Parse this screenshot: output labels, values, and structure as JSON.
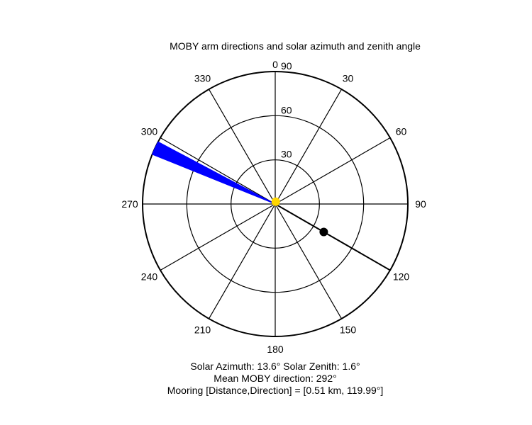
{
  "chart_data": {
    "type": "polar",
    "title": "MOBY arm directions and solar azimuth and zenith angle",
    "angle_ticks": [
      0,
      30,
      60,
      90,
      120,
      150,
      180,
      210,
      240,
      270,
      300,
      330
    ],
    "angle_tick_labels": [
      "0",
      "30",
      "60",
      "90",
      "120",
      "150",
      "180",
      "210",
      "240",
      "270",
      "300",
      "330"
    ],
    "radial_ticks": [
      30,
      60,
      90
    ],
    "radial_tick_labels": [
      "30",
      "60",
      "90"
    ],
    "radial_max": 90,
    "arm_wedge": {
      "from_azimuth": 292,
      "to_azimuth": 298,
      "color": "#0000ff"
    },
    "sun_marker": {
      "azimuth": 13.6,
      "zenith": 1.6,
      "color": "#ffd700"
    },
    "mooring_marker": {
      "azimuth": 119.99,
      "distance_km": 0.51,
      "color": "#000000"
    },
    "mooring_line": {
      "azimuth": 119.99,
      "color": "#000000"
    }
  },
  "footer": {
    "line1": "Solar Azimuth: 13.6°   Solar Zenith: 1.6°",
    "line2": "Mean MOBY direction: 292°",
    "line3": "Mooring [Distance,Direction] = [0.51 km, 119.99°]"
  }
}
